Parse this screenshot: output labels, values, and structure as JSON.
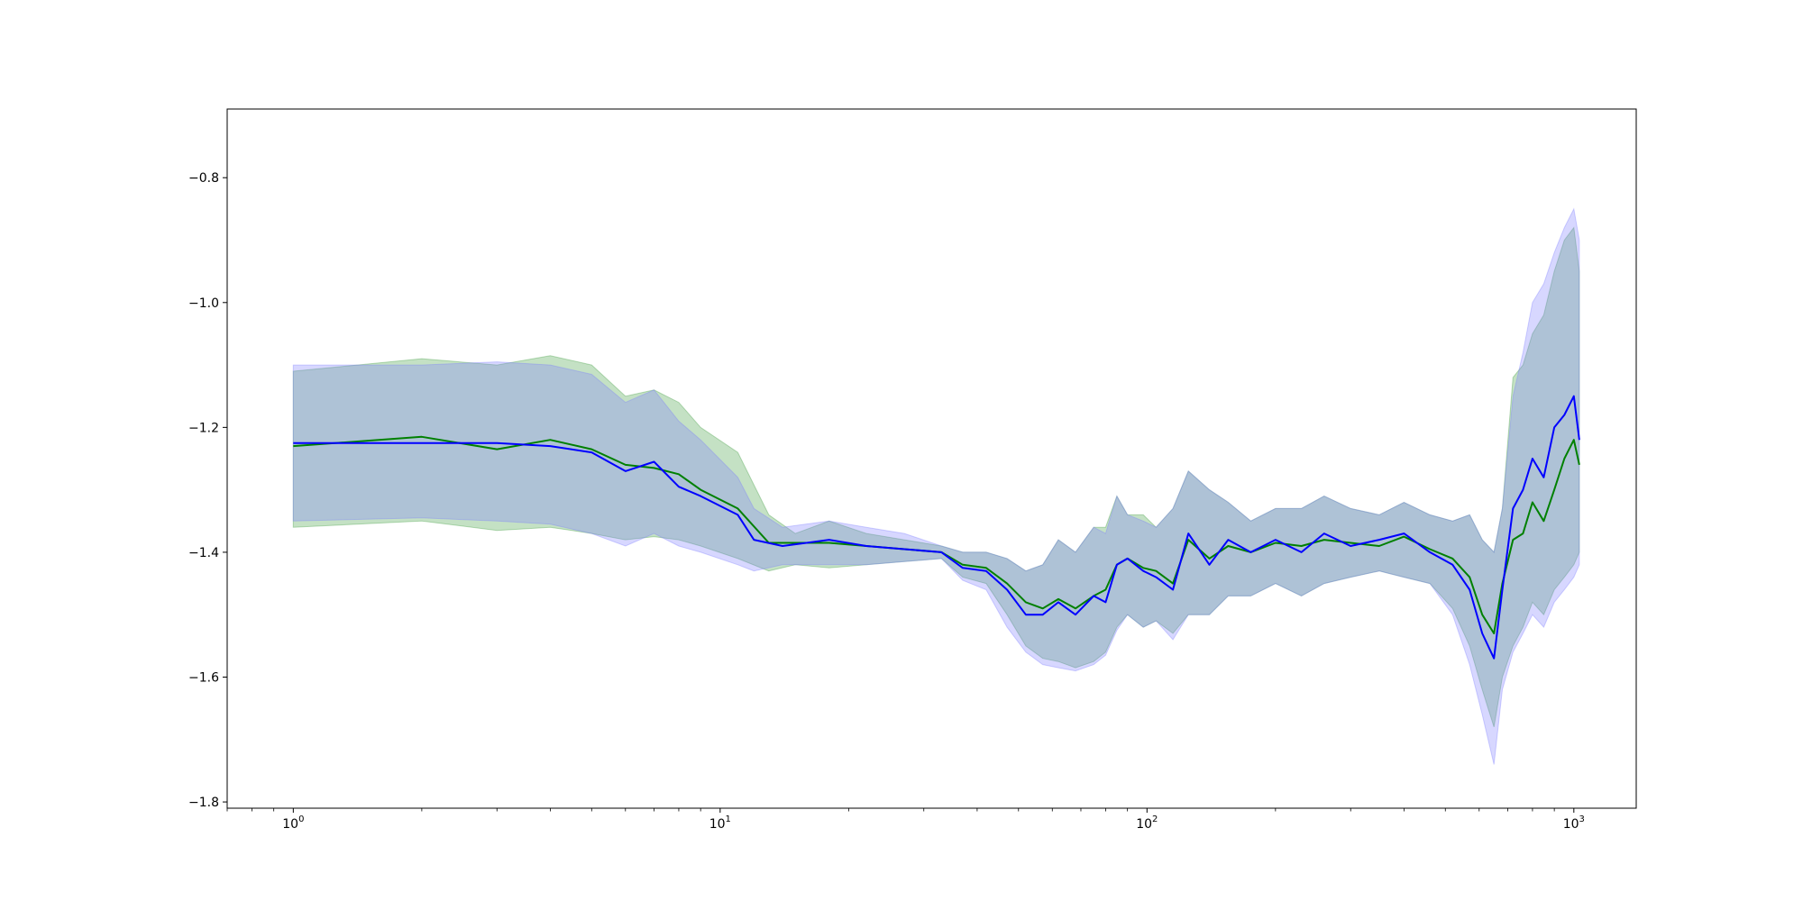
{
  "chart_data": {
    "type": "line",
    "title": "",
    "xlabel": "",
    "ylabel": "",
    "xscale": "log",
    "xlim": [
      0.7,
      1400
    ],
    "ylim": [
      -1.81,
      -0.69
    ],
    "grid": false,
    "legend": "none",
    "x_ticks": [
      {
        "value": 1,
        "base": "10",
        "exp": "0"
      },
      {
        "value": 10,
        "base": "10",
        "exp": "1"
      },
      {
        "value": 100,
        "base": "10",
        "exp": "2"
      },
      {
        "value": 1000,
        "base": "10",
        "exp": "3"
      }
    ],
    "y_ticks": [
      {
        "value": -0.8,
        "label": "−0.8"
      },
      {
        "value": -1.0,
        "label": "−1.0"
      },
      {
        "value": -1.2,
        "label": "−1.2"
      },
      {
        "value": -1.4,
        "label": "−1.4"
      },
      {
        "value": -1.6,
        "label": "−1.6"
      },
      {
        "value": -1.8,
        "label": "−1.8"
      }
    ],
    "series": [
      {
        "color": "#008000",
        "band_color": "#3c9a3c",
        "points": [
          [
            1,
            -1.23,
            -1.36,
            -1.11
          ],
          [
            2,
            -1.215,
            -1.35,
            -1.09
          ],
          [
            3,
            -1.235,
            -1.365,
            -1.1
          ],
          [
            4,
            -1.22,
            -1.36,
            -1.085
          ],
          [
            5,
            -1.235,
            -1.37,
            -1.1
          ],
          [
            6,
            -1.26,
            -1.38,
            -1.15
          ],
          [
            7,
            -1.265,
            -1.375,
            -1.14
          ],
          [
            8,
            -1.275,
            -1.38,
            -1.16
          ],
          [
            9,
            -1.3,
            -1.39,
            -1.2
          ],
          [
            11,
            -1.33,
            -1.41,
            -1.24
          ],
          [
            13,
            -1.385,
            -1.43,
            -1.34
          ],
          [
            15,
            -1.385,
            -1.42,
            -1.37
          ],
          [
            18,
            -1.385,
            -1.425,
            -1.35
          ],
          [
            22,
            -1.39,
            -1.42,
            -1.37
          ],
          [
            27,
            -1.395,
            -1.415,
            -1.38
          ],
          [
            33,
            -1.4,
            -1.41,
            -1.39
          ],
          [
            37,
            -1.42,
            -1.44,
            -1.4
          ],
          [
            42,
            -1.425,
            -1.45,
            -1.4
          ],
          [
            47,
            -1.45,
            -1.5,
            -1.41
          ],
          [
            52,
            -1.48,
            -1.55,
            -1.43
          ],
          [
            57,
            -1.49,
            -1.57,
            -1.42
          ],
          [
            62,
            -1.475,
            -1.575,
            -1.38
          ],
          [
            68,
            -1.49,
            -1.585,
            -1.4
          ],
          [
            75,
            -1.47,
            -1.575,
            -1.36
          ],
          [
            80,
            -1.46,
            -1.56,
            -1.36
          ],
          [
            85,
            -1.42,
            -1.52,
            -1.31
          ],
          [
            90,
            -1.41,
            -1.5,
            -1.34
          ],
          [
            98,
            -1.425,
            -1.52,
            -1.34
          ],
          [
            105,
            -1.43,
            -1.51,
            -1.36
          ],
          [
            115,
            -1.45,
            -1.53,
            -1.33
          ],
          [
            125,
            -1.38,
            -1.5,
            -1.27
          ],
          [
            140,
            -1.41,
            -1.5,
            -1.3
          ],
          [
            155,
            -1.39,
            -1.47,
            -1.32
          ],
          [
            175,
            -1.4,
            -1.47,
            -1.35
          ],
          [
            200,
            -1.385,
            -1.45,
            -1.33
          ],
          [
            230,
            -1.39,
            -1.47,
            -1.33
          ],
          [
            260,
            -1.38,
            -1.45,
            -1.31
          ],
          [
            300,
            -1.385,
            -1.44,
            -1.33
          ],
          [
            350,
            -1.39,
            -1.43,
            -1.34
          ],
          [
            400,
            -1.375,
            -1.44,
            -1.32
          ],
          [
            460,
            -1.395,
            -1.45,
            -1.34
          ],
          [
            520,
            -1.41,
            -1.49,
            -1.35
          ],
          [
            570,
            -1.44,
            -1.55,
            -1.34
          ],
          [
            610,
            -1.5,
            -1.62,
            -1.38
          ],
          [
            650,
            -1.53,
            -1.68,
            -1.4
          ],
          [
            680,
            -1.45,
            -1.6,
            -1.33
          ],
          [
            720,
            -1.38,
            -1.55,
            -1.12
          ],
          [
            760,
            -1.37,
            -1.52,
            -1.1
          ],
          [
            800,
            -1.32,
            -1.48,
            -1.05
          ],
          [
            850,
            -1.35,
            -1.5,
            -1.02
          ],
          [
            900,
            -1.3,
            -1.46,
            -0.95
          ],
          [
            950,
            -1.25,
            -1.44,
            -0.9
          ],
          [
            1000,
            -1.22,
            -1.42,
            -0.88
          ],
          [
            1030,
            -1.26,
            -1.4,
            -0.95
          ]
        ]
      },
      {
        "color": "#0000ff",
        "band_color": "#7a7aff",
        "points": [
          [
            1,
            -1.225,
            -1.35,
            -1.1
          ],
          [
            2,
            -1.225,
            -1.345,
            -1.1
          ],
          [
            3,
            -1.225,
            -1.35,
            -1.095
          ],
          [
            4,
            -1.23,
            -1.355,
            -1.1
          ],
          [
            5,
            -1.24,
            -1.37,
            -1.115
          ],
          [
            6,
            -1.27,
            -1.39,
            -1.16
          ],
          [
            7,
            -1.255,
            -1.37,
            -1.14
          ],
          [
            8,
            -1.295,
            -1.39,
            -1.19
          ],
          [
            9,
            -1.31,
            -1.4,
            -1.22
          ],
          [
            11,
            -1.34,
            -1.42,
            -1.28
          ],
          [
            12,
            -1.38,
            -1.43,
            -1.33
          ],
          [
            14,
            -1.39,
            -1.42,
            -1.36
          ],
          [
            18,
            -1.38,
            -1.42,
            -1.35
          ],
          [
            22,
            -1.39,
            -1.42,
            -1.36
          ],
          [
            27,
            -1.395,
            -1.415,
            -1.37
          ],
          [
            33,
            -1.4,
            -1.41,
            -1.39
          ],
          [
            37,
            -1.425,
            -1.445,
            -1.4
          ],
          [
            42,
            -1.43,
            -1.46,
            -1.4
          ],
          [
            47,
            -1.46,
            -1.52,
            -1.41
          ],
          [
            52,
            -1.5,
            -1.56,
            -1.43
          ],
          [
            57,
            -1.5,
            -1.58,
            -1.42
          ],
          [
            62,
            -1.48,
            -1.585,
            -1.38
          ],
          [
            68,
            -1.5,
            -1.59,
            -1.4
          ],
          [
            75,
            -1.47,
            -1.58,
            -1.36
          ],
          [
            80,
            -1.48,
            -1.565,
            -1.37
          ],
          [
            85,
            -1.42,
            -1.525,
            -1.31
          ],
          [
            90,
            -1.41,
            -1.5,
            -1.34
          ],
          [
            98,
            -1.43,
            -1.52,
            -1.35
          ],
          [
            105,
            -1.44,
            -1.51,
            -1.36
          ],
          [
            115,
            -1.46,
            -1.54,
            -1.33
          ],
          [
            125,
            -1.37,
            -1.5,
            -1.27
          ],
          [
            140,
            -1.42,
            -1.5,
            -1.3
          ],
          [
            155,
            -1.38,
            -1.47,
            -1.32
          ],
          [
            175,
            -1.4,
            -1.47,
            -1.35
          ],
          [
            200,
            -1.38,
            -1.45,
            -1.33
          ],
          [
            230,
            -1.4,
            -1.47,
            -1.33
          ],
          [
            260,
            -1.37,
            -1.45,
            -1.31
          ],
          [
            300,
            -1.39,
            -1.44,
            -1.33
          ],
          [
            350,
            -1.38,
            -1.43,
            -1.34
          ],
          [
            400,
            -1.37,
            -1.44,
            -1.32
          ],
          [
            460,
            -1.4,
            -1.45,
            -1.34
          ],
          [
            520,
            -1.42,
            -1.5,
            -1.35
          ],
          [
            570,
            -1.46,
            -1.58,
            -1.34
          ],
          [
            610,
            -1.53,
            -1.66,
            -1.38
          ],
          [
            650,
            -1.57,
            -1.74,
            -1.4
          ],
          [
            680,
            -1.46,
            -1.62,
            -1.33
          ],
          [
            720,
            -1.33,
            -1.56,
            -1.15
          ],
          [
            760,
            -1.3,
            -1.53,
            -1.08
          ],
          [
            800,
            -1.25,
            -1.5,
            -1.0
          ],
          [
            850,
            -1.28,
            -1.52,
            -0.97
          ],
          [
            900,
            -1.2,
            -1.48,
            -0.92
          ],
          [
            950,
            -1.18,
            -1.46,
            -0.88
          ],
          [
            1000,
            -1.15,
            -1.44,
            -0.85
          ],
          [
            1030,
            -1.22,
            -1.42,
            -0.9
          ]
        ]
      }
    ]
  }
}
